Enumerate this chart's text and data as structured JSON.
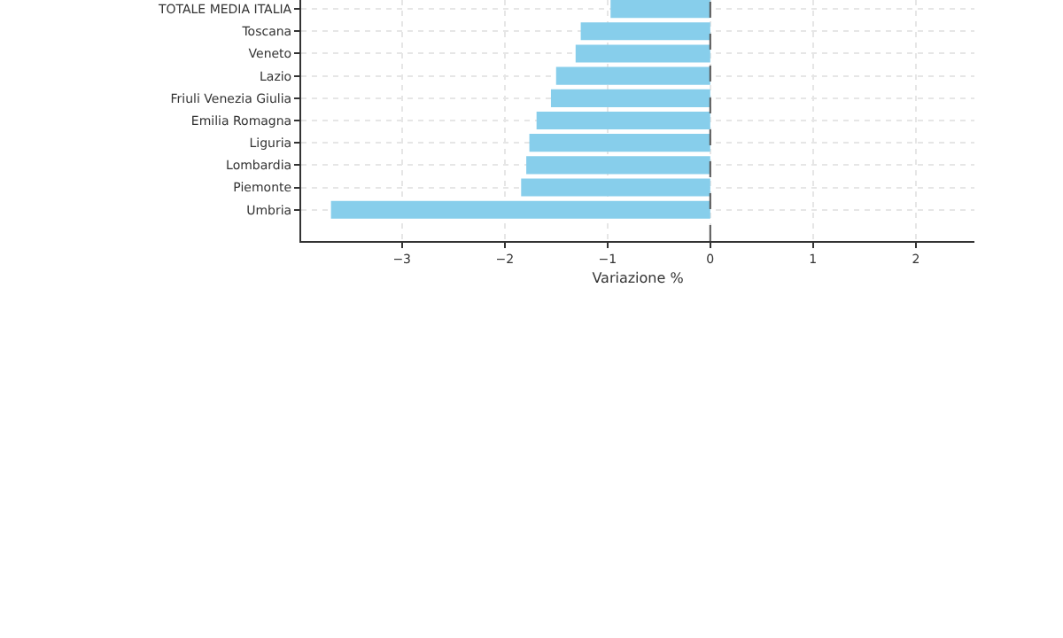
{
  "chart_data": {
    "type": "bar",
    "orientation": "horizontal",
    "xlabel": "Variazione %",
    "categories": [
      "TOTALE MEDIA ITALIA",
      "Toscana",
      "Veneto",
      "Lazio",
      "Friuli Venezia Giulia",
      "Emilia Romagna",
      "Liguria",
      "Lombardia",
      "Piemonte",
      "Umbria"
    ],
    "values": [
      -0.97,
      -1.26,
      -1.31,
      -1.5,
      -1.55,
      -1.69,
      -1.76,
      -1.79,
      -1.84,
      -3.69
    ],
    "color": "#87ceeb",
    "xlim": [
      -3.98,
      2.57
    ],
    "xticks": [
      {
        "value": -3,
        "label": "−3"
      },
      {
        "value": -2,
        "label": "−2"
      },
      {
        "value": -1,
        "label": "−1"
      },
      0,
      1,
      2
    ],
    "grid": true,
    "ref_lines": [
      {
        "axis": "x",
        "value": 0,
        "color": "#555555",
        "line_style": "dashed"
      }
    ]
  }
}
